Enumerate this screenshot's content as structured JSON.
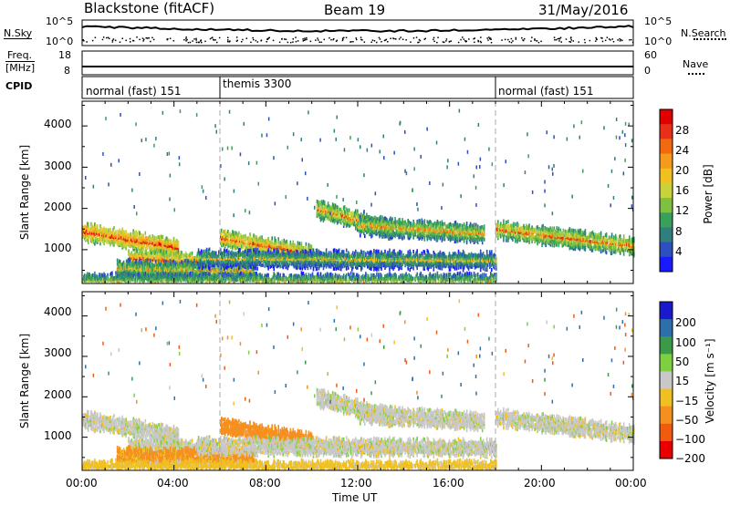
{
  "header": {
    "radar": "Blackstone (fitACF)",
    "beam": "Beam 19",
    "date": "31/May/2016"
  },
  "noise_panel": {
    "left_label": "N.Sky",
    "right_label": "N.Search",
    "left_ticks": [
      "10^5",
      "10^0"
    ],
    "right_ticks": [
      "10^5",
      "10^0"
    ]
  },
  "freq_panel": {
    "left_label_line1": "Freq.",
    "left_label_line2": "[MHz]",
    "right_label": "Nave",
    "left_ticks": [
      "18",
      "8"
    ],
    "right_ticks": [
      "60",
      "0"
    ]
  },
  "cpid_panel": {
    "label": "CPID",
    "segments": [
      {
        "text": "normal (fast) 151",
        "start_hour": 0
      },
      {
        "text": "themis 3300",
        "start_hour": 6
      },
      {
        "text": "normal (fast) 151",
        "start_hour": 18
      }
    ]
  },
  "power_panel": {
    "ylabel": "Slant Range [km]",
    "yticks": [
      "4000",
      "3000",
      "2000",
      "1000"
    ],
    "colorbar_label": "Power [dB]",
    "colorbar_ticks": [
      "28",
      "24",
      "20",
      "16",
      "12",
      "8",
      "4"
    ],
    "colors": [
      "#1a1aff",
      "#2d4fbf",
      "#2f7f7f",
      "#38a05a",
      "#7fc040",
      "#c8d23c",
      "#f0c020",
      "#f59a1a",
      "#f26a10",
      "#e83018",
      "#e00000"
    ]
  },
  "velocity_panel": {
    "ylabel": "Slant Range [km]",
    "yticks": [
      "4000",
      "3000",
      "2000",
      "1000"
    ],
    "colorbar_label": "Velocity [m s⁻¹]",
    "colorbar_ticks": [
      "200",
      "100",
      "50",
      "15",
      "−15",
      "−50",
      "−100",
      "−200"
    ],
    "colors": [
      "#1a1acc",
      "#2c6faa",
      "#3a9a4a",
      "#7fd040",
      "#c8c8c8",
      "#f0c020",
      "#f59020",
      "#f25a10",
      "#e80000"
    ]
  },
  "xaxis": {
    "label": "Time UT",
    "ticks": [
      "00:00",
      "04:00",
      "08:00",
      "12:00",
      "16:00",
      "20:00",
      "00:00"
    ]
  },
  "chart_data": {
    "type": "heatmap",
    "title": "Blackstone (fitACF)  Beam 19  31/May/2016",
    "xlabel": "Time UT",
    "ylabel": "Slant Range [km]",
    "xlim_hours": [
      0,
      24
    ],
    "ylim_km": [
      180,
      4600
    ],
    "vertical_markers_hours": [
      6,
      18
    ],
    "power_colorbar_range_db": [
      0,
      32
    ],
    "velocity_colorbar_range": [
      -250,
      250
    ],
    "scatter_bands": [
      {
        "name": "band-a",
        "t_start": 0,
        "t_end": 4.2,
        "range_start_km": 1450,
        "range_end_km": 1050,
        "power_db": 22,
        "velocity": 0
      },
      {
        "name": "band-b",
        "t_start": 2.0,
        "t_end": 5.5,
        "range_start_km": 800,
        "range_end_km": 700,
        "power_db": 20,
        "velocity": 0
      },
      {
        "name": "band-c",
        "t_start": 1.5,
        "t_end": 7.5,
        "range_start_km": 550,
        "range_end_km": 500,
        "power_db": 14,
        "velocity": -60
      },
      {
        "name": "band-d",
        "t_start": 6.0,
        "t_end": 10.0,
        "range_start_km": 1300,
        "range_end_km": 900,
        "power_db": 20,
        "velocity": -80
      },
      {
        "name": "band-e",
        "t_start": 10.2,
        "t_end": 13.5,
        "range_start_km": 2000,
        "range_end_km": 1500,
        "power_db": 18,
        "velocity": 0
      },
      {
        "name": "band-f",
        "t_start": 12.0,
        "t_end": 17.5,
        "range_start_km": 1600,
        "range_end_km": 1400,
        "power_db": 16,
        "velocity": 0
      },
      {
        "name": "band-g",
        "t_start": 5.0,
        "t_end": 18.0,
        "range_start_km": 800,
        "range_end_km": 750,
        "power_db": 12,
        "velocity": 0
      },
      {
        "name": "band-h",
        "t_start": 18.0,
        "t_end": 24.0,
        "range_start_km": 1500,
        "range_end_km": 1100,
        "power_db": 18,
        "velocity": 0
      },
      {
        "name": "band-i",
        "t_start": 0,
        "t_end": 18.0,
        "range_start_km": 220,
        "range_end_km": 220,
        "power_db": 14,
        "velocity": -30
      }
    ]
  }
}
